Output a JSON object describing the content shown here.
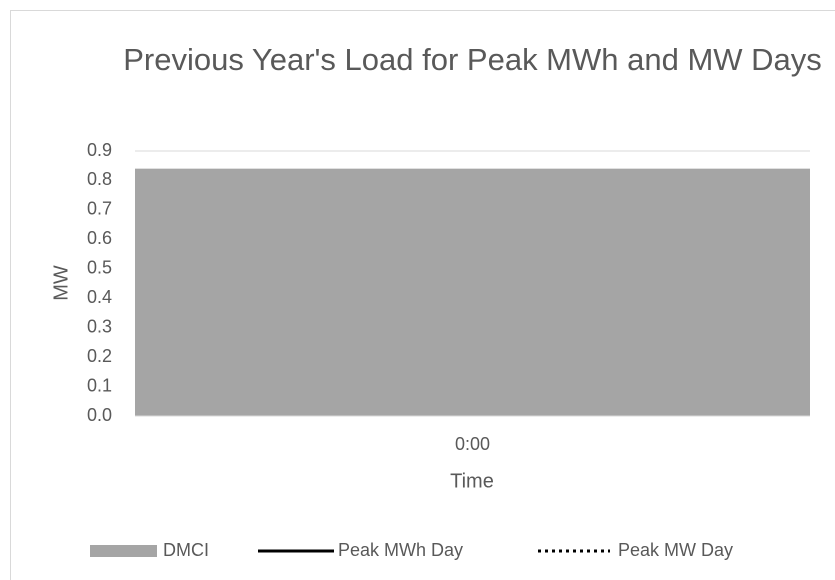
{
  "chart_data": {
    "type": "bar",
    "title": "Previous Year's Load for Peak MWh and MW Days",
    "x_label": "Time",
    "y_label": "MW",
    "categories": [
      "0:00"
    ],
    "series": [
      {
        "name": "DMCI",
        "type": "bar",
        "color": "#a5a5a5",
        "values": [
          0.84
        ]
      },
      {
        "name": "Peak MWh Day",
        "type": "line",
        "style": "solid",
        "color": "#000000",
        "values": [
          null
        ]
      },
      {
        "name": "Peak MW Day",
        "type": "line",
        "style": "dotted",
        "color": "#000000",
        "values": [
          null
        ]
      }
    ],
    "ylim": [
      0,
      0.9
    ],
    "yticks": [
      {
        "value": 0,
        "label": "0.0"
      },
      0.1,
      0.2,
      0.3,
      0.4,
      0.5,
      0.6,
      0.7,
      0.8,
      0.9
    ],
    "grid": true,
    "legend": "bottom"
  }
}
